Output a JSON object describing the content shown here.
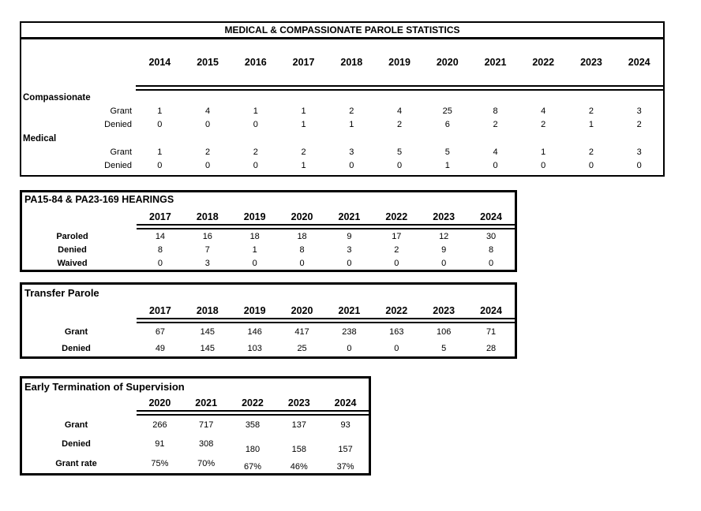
{
  "colors": {
    "background": "#ffffff",
    "text": "#000000",
    "border": "#000000"
  },
  "tables": [
    {
      "id": "medical-compassionate",
      "title": "MEDICAL & COMPASSIONATE PAROLE STATISTICS",
      "title_align": "center",
      "years": [
        "2014",
        "2015",
        "2016",
        "2017",
        "2018",
        "2019",
        "2020",
        "2021",
        "2022",
        "2023",
        "2024"
      ],
      "rows": [
        {
          "label": "Compassionate",
          "type": "group",
          "values": []
        },
        {
          "label": "Grant",
          "type": "sub",
          "values": [
            "1",
            "4",
            "1",
            "1",
            "2",
            "4",
            "25",
            "8",
            "4",
            "2",
            "3"
          ]
        },
        {
          "label": "Denied",
          "type": "sub",
          "values": [
            "0",
            "0",
            "0",
            "1",
            "1",
            "2",
            "6",
            "2",
            "2",
            "1",
            "2"
          ]
        },
        {
          "label": "Medical",
          "type": "group",
          "values": []
        },
        {
          "label": "Grant",
          "type": "sub",
          "values": [
            "1",
            "2",
            "2",
            "2",
            "3",
            "5",
            "5",
            "4",
            "1",
            "2",
            "3"
          ]
        },
        {
          "label": "Denied",
          "type": "sub",
          "values": [
            "0",
            "0",
            "0",
            "1",
            "0",
            "0",
            "1",
            "0",
            "0",
            "0",
            "0"
          ]
        }
      ]
    },
    {
      "id": "hearings",
      "title": "PA15-84 & PA23-169 HEARINGS",
      "title_align": "left",
      "years": [
        "2017",
        "2018",
        "2019",
        "2020",
        "2021",
        "2022",
        "2023",
        "2024"
      ],
      "rows": [
        {
          "label": "Paroled",
          "values": [
            "14",
            "16",
            "18",
            "18",
            "9",
            "17",
            "12",
            "30"
          ]
        },
        {
          "label": "Denied",
          "values": [
            "8",
            "7",
            "1",
            "8",
            "3",
            "2",
            "9",
            "8"
          ]
        },
        {
          "label": "Waived",
          "values": [
            "0",
            "3",
            "0",
            "0",
            "0",
            "0",
            "0",
            "0"
          ]
        }
      ]
    },
    {
      "id": "transfer-parole",
      "title": "Transfer Parole",
      "title_align": "left",
      "years": [
        "2017",
        "2018",
        "2019",
        "2020",
        "2021",
        "2022",
        "2023",
        "2024"
      ],
      "rows": [
        {
          "label": "Grant",
          "values": [
            "67",
            "145",
            "146",
            "417",
            "238",
            "163",
            "106",
            "71"
          ]
        },
        {
          "label": "Denied",
          "values": [
            "49",
            "145",
            "103",
            "25",
            "0",
            "0",
            "5",
            "28"
          ]
        }
      ]
    },
    {
      "id": "early-termination",
      "title": "Early Termination of Supervision",
      "title_align": "left",
      "years": [
        "2020",
        "2021",
        "2022",
        "2023",
        "2024"
      ],
      "rows": [
        {
          "label": "Grant",
          "values": [
            "266",
            "717",
            "358",
            "137",
            "93"
          ]
        },
        {
          "label": "Denied",
          "values": [
            "91",
            "308",
            "180",
            "158",
            "157"
          ]
        },
        {
          "label": "Grant rate",
          "values": [
            "75%",
            "70%",
            "67%",
            "46%",
            "37%"
          ]
        }
      ]
    }
  ]
}
